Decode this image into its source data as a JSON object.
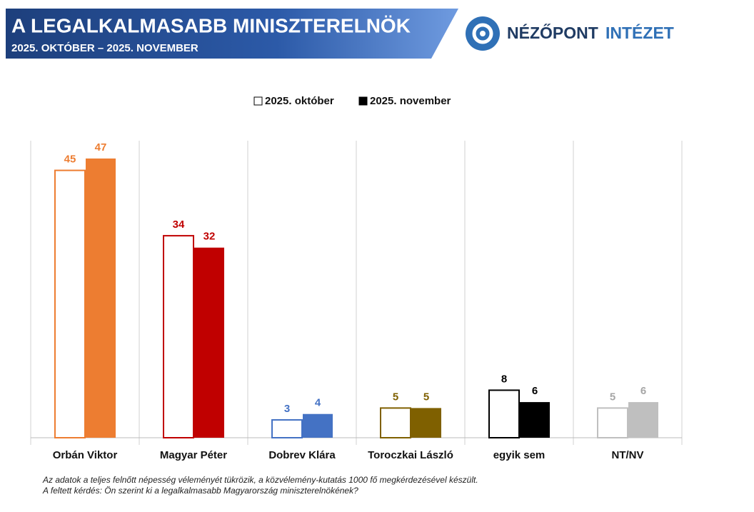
{
  "header": {
    "title": "A LEGALKALMASABB MINISZTERELNÖK",
    "subtitle": "2025. OKTÓBER – 2025. NOVEMBER",
    "logo_name": "NÉZŐPONT",
    "logo_suffix": "INTÉZET"
  },
  "chart_data": {
    "type": "bar",
    "categories": [
      "Orbán Viktor",
      "Magyar Péter",
      "Dobrev Klára",
      "Toroczkai László",
      "egyik sem",
      "NT/NV"
    ],
    "category_colors": [
      "#ed7d31",
      "#c00000",
      "#4472c4",
      "#7f6000",
      "#000000",
      "#bfbfbf"
    ],
    "series": [
      {
        "name": "2025. október",
        "color": "#ffffff",
        "style": "outline",
        "values": [
          45,
          34,
          3,
          5,
          8,
          5
        ]
      },
      {
        "name": "2025. november",
        "color": "#000000",
        "style": "filled",
        "values": [
          47,
          32,
          4,
          5,
          6,
          6
        ]
      }
    ],
    "ylim": [
      0,
      50
    ]
  },
  "footnotes": [
    "Az adatok a teljes felnőtt népesség véleményét tükrözik, a közvélemény-kutatás 1000 fő megkérdezésével készült.",
    "A feltett kérdés: Ön szerint ki a legalkalmasabb Magyarország miniszterelnökének?"
  ]
}
